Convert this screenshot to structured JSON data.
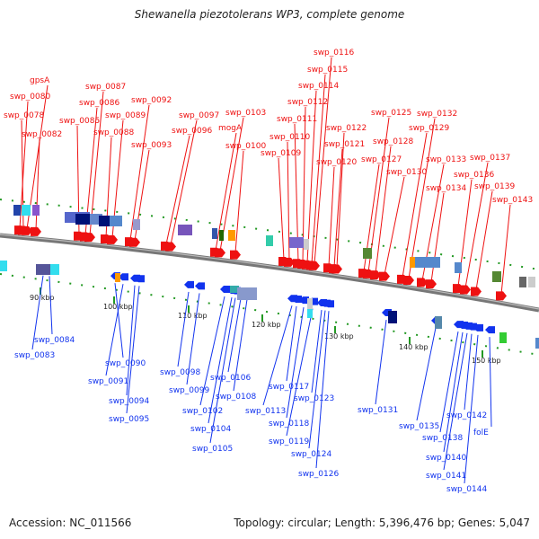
{
  "title": "Shewanella piezotolerans WP3, complete genome",
  "footer": {
    "accession": "Accession: NC_011566",
    "summary": "Topology: circular; Length: 5,396,476 bp; Genes: 5,047"
  },
  "colors": {
    "forward": "#ee1111",
    "reverse": "#1133ee",
    "backbone": "#888888",
    "tick": "#229922"
  },
  "scale": {
    "ticks": [
      {
        "label": "90 kbp"
      },
      {
        "label": "100 kbp"
      },
      {
        "label": "110 kbp"
      },
      {
        "label": "120 kbp"
      },
      {
        "label": "130 kbp"
      },
      {
        "label": "140 kbp"
      },
      {
        "label": "150 kbp"
      }
    ]
  },
  "forward_genes": [
    {
      "label": "gpsA"
    },
    {
      "label": "swp_0080"
    },
    {
      "label": "swp_0078"
    },
    {
      "label": "swp_0082"
    },
    {
      "label": "swp_0087"
    },
    {
      "label": "swp_0086"
    },
    {
      "label": "swp_0085"
    },
    {
      "label": "swp_0089"
    },
    {
      "label": "swp_0088"
    },
    {
      "label": "swp_0092"
    },
    {
      "label": "swp_0093"
    },
    {
      "label": "swp_0097"
    },
    {
      "label": "swp_0096"
    },
    {
      "label": "swp_0103"
    },
    {
      "label": "mogA"
    },
    {
      "label": "swp_0100"
    },
    {
      "label": "swp_0116"
    },
    {
      "label": "swp_0115"
    },
    {
      "label": "swp_0114"
    },
    {
      "label": "swp_0112"
    },
    {
      "label": "swp_0111"
    },
    {
      "label": "swp_0110"
    },
    {
      "label": "swp_0109"
    },
    {
      "label": "swp_0122"
    },
    {
      "label": "swp_0121"
    },
    {
      "label": "swp_0120"
    },
    {
      "label": "swp_0125"
    },
    {
      "label": "swp_0128"
    },
    {
      "label": "swp_0127"
    },
    {
      "label": "swp_0130"
    },
    {
      "label": "swp_0132"
    },
    {
      "label": "swp_0129"
    },
    {
      "label": "swp_0133"
    },
    {
      "label": "swp_0134"
    },
    {
      "label": "swp_0137"
    },
    {
      "label": "swp_0136"
    },
    {
      "label": "swp_0139"
    },
    {
      "label": "swp_0143"
    }
  ],
  "reverse_genes": [
    {
      "label": "swp_0084"
    },
    {
      "label": "swp_0083"
    },
    {
      "label": "swp_0090"
    },
    {
      "label": "swp_0091"
    },
    {
      "label": "swp_0094"
    },
    {
      "label": "swp_0095"
    },
    {
      "label": "swp_0098"
    },
    {
      "label": "swp_0099"
    },
    {
      "label": "swp_0106"
    },
    {
      "label": "swp_0108"
    },
    {
      "label": "swp_0102"
    },
    {
      "label": "swp_0104"
    },
    {
      "label": "swp_0105"
    },
    {
      "label": "swp_0117"
    },
    {
      "label": "swp_0113"
    },
    {
      "label": "swp_0118"
    },
    {
      "label": "swp_0123"
    },
    {
      "label": "swp_0119"
    },
    {
      "label": "swp_0124"
    },
    {
      "label": "swp_0126"
    },
    {
      "label": "swp_0131"
    },
    {
      "label": "swp_0142"
    },
    {
      "label": "swp_0135"
    },
    {
      "label": "folE"
    },
    {
      "label": "swp_0138"
    },
    {
      "label": "swp_0140"
    },
    {
      "label": "swp_0141"
    },
    {
      "label": "swp_0144"
    }
  ]
}
